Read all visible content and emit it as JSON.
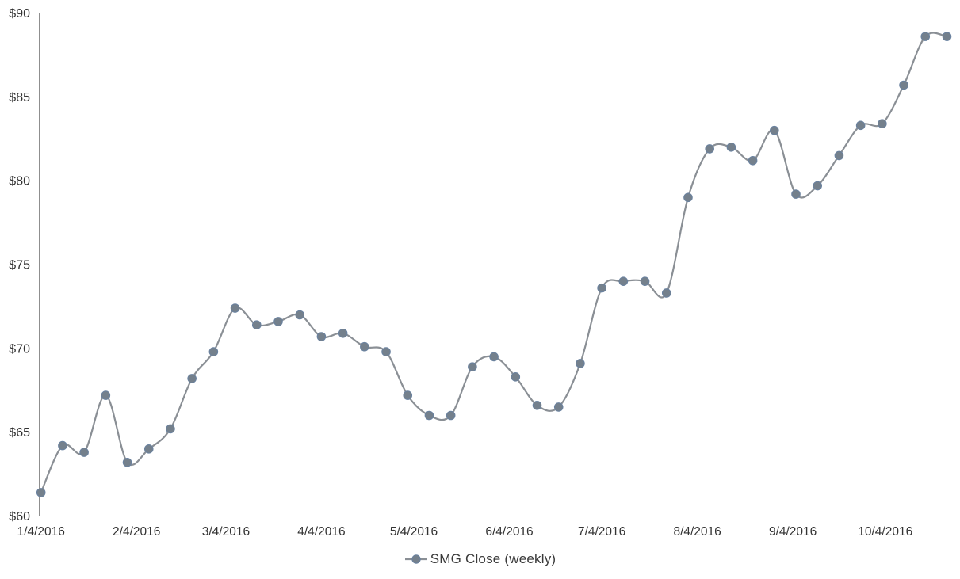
{
  "chart_data": {
    "type": "line",
    "title": "",
    "xlabel": "",
    "ylabel": "",
    "grid": false,
    "smoothed": true,
    "legend_position": "bottom-center",
    "ylim": [
      60,
      90
    ],
    "y_ticks": [
      {
        "value": 60,
        "label": "$60"
      },
      {
        "value": 65,
        "label": "$65"
      },
      {
        "value": 70,
        "label": "$70"
      },
      {
        "value": 75,
        "label": "$75"
      },
      {
        "value": 80,
        "label": "$80"
      },
      {
        "value": 85,
        "label": "$85"
      },
      {
        "value": 90,
        "label": "$90"
      }
    ],
    "x_tick_labels": [
      {
        "date": "2016-01-04",
        "label": "1/4/2016"
      },
      {
        "date": "2016-02-04",
        "label": "2/4/2016"
      },
      {
        "date": "2016-03-04",
        "label": "3/4/2016"
      },
      {
        "date": "2016-04-04",
        "label": "4/4/2016"
      },
      {
        "date": "2016-05-04",
        "label": "5/4/2016"
      },
      {
        "date": "2016-06-04",
        "label": "6/4/2016"
      },
      {
        "date": "2016-07-04",
        "label": "7/4/2016"
      },
      {
        "date": "2016-08-04",
        "label": "8/4/2016"
      },
      {
        "date": "2016-09-04",
        "label": "9/4/2016"
      },
      {
        "date": "2016-10-04",
        "label": "10/4/2016"
      }
    ],
    "series": [
      {
        "name": "SMG Close (weekly)",
        "x": [
          "2016-01-04",
          "2016-01-11",
          "2016-01-18",
          "2016-01-25",
          "2016-02-01",
          "2016-02-08",
          "2016-02-15",
          "2016-02-22",
          "2016-02-29",
          "2016-03-07",
          "2016-03-14",
          "2016-03-21",
          "2016-03-28",
          "2016-04-04",
          "2016-04-11",
          "2016-04-18",
          "2016-04-25",
          "2016-05-02",
          "2016-05-09",
          "2016-05-16",
          "2016-05-23",
          "2016-05-30",
          "2016-06-06",
          "2016-06-13",
          "2016-06-20",
          "2016-06-27",
          "2016-07-04",
          "2016-07-11",
          "2016-07-18",
          "2016-07-25",
          "2016-08-01",
          "2016-08-08",
          "2016-08-15",
          "2016-08-22",
          "2016-08-29",
          "2016-09-05",
          "2016-09-12",
          "2016-09-19",
          "2016-09-26",
          "2016-10-03",
          "2016-10-10",
          "2016-10-17",
          "2016-10-24"
        ],
        "values": [
          61.4,
          64.2,
          63.8,
          67.2,
          63.2,
          64.0,
          65.2,
          68.2,
          69.8,
          72.4,
          71.4,
          71.6,
          72.0,
          70.7,
          70.9,
          70.1,
          69.8,
          67.2,
          66.0,
          66.0,
          68.9,
          69.5,
          68.3,
          66.6,
          66.5,
          69.1,
          73.6,
          74.0,
          74.0,
          73.3,
          79.0,
          81.9,
          82.0,
          81.2,
          83.0,
          79.2,
          79.7,
          81.5,
          83.3,
          83.4,
          85.7,
          88.6,
          88.6
        ]
      }
    ],
    "colors": {
      "line": "#8a8f95",
      "marker_fill": "#74808c",
      "marker_stroke": "#6a82a0",
      "axis_line": "#8f8f8f",
      "tick_text": "#333333"
    }
  },
  "legend": {
    "label": "SMG Close (weekly)"
  }
}
